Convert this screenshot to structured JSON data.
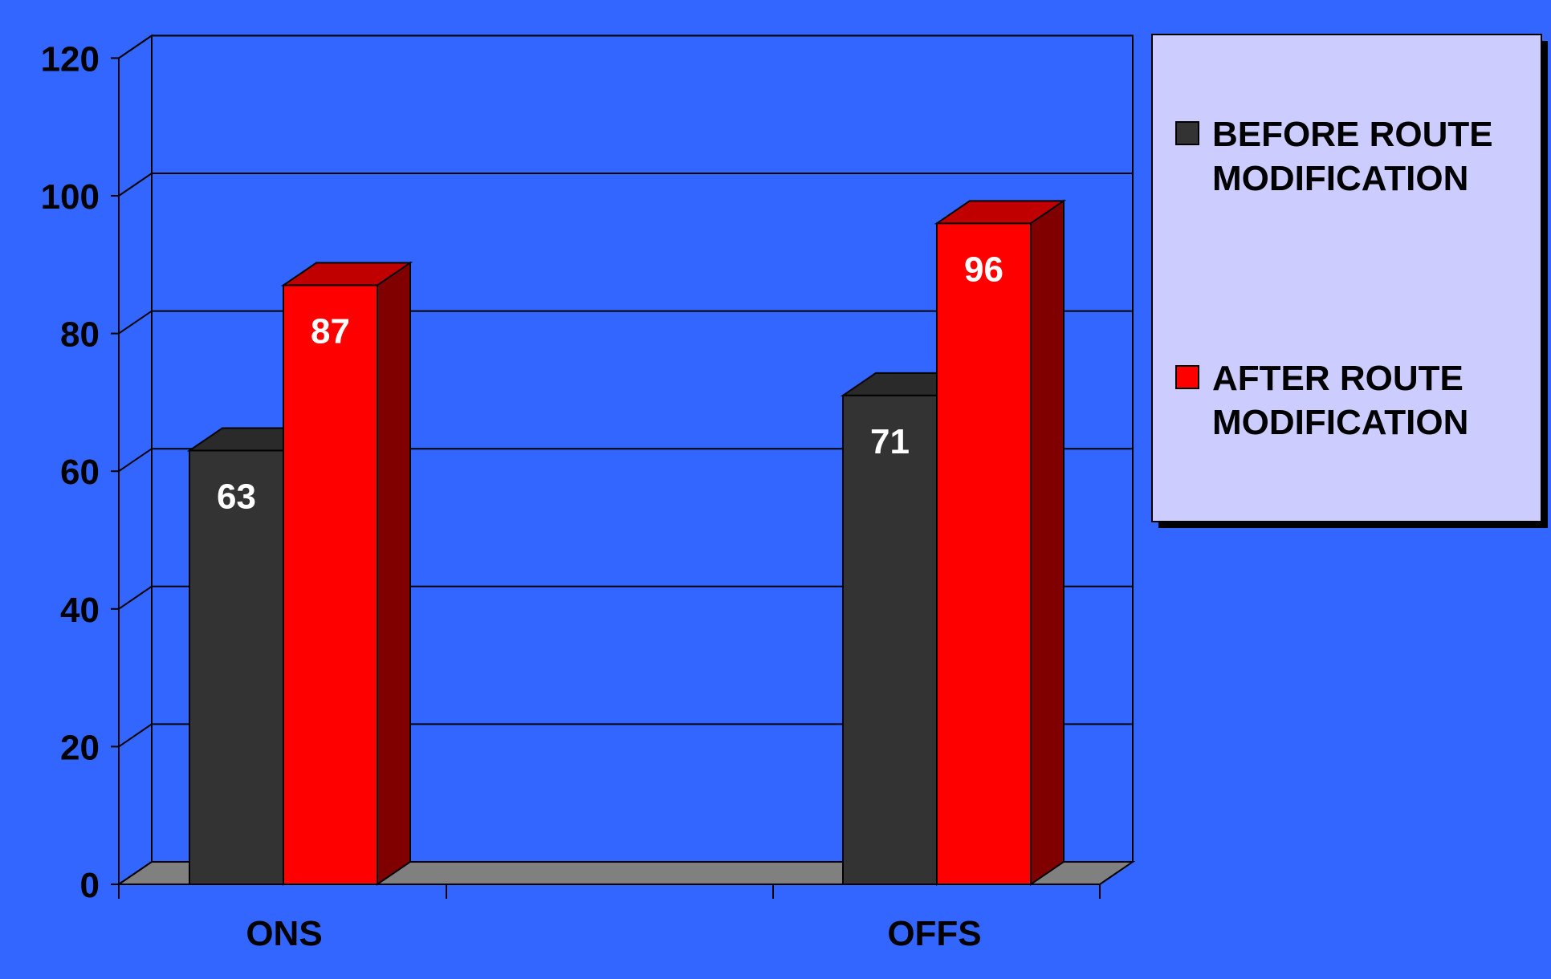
{
  "chart_data": {
    "type": "bar",
    "categories": [
      "ONS",
      "OFFS"
    ],
    "series": [
      {
        "name": "BEFORE ROUTE MODIFICATION",
        "values": [
          63,
          71
        ],
        "color": "#333333",
        "side_color": "#1e1e1e",
        "top_color": "#2a2a2a"
      },
      {
        "name": "AFTER ROUTE MODIFICATION",
        "values": [
          87,
          96
        ],
        "color": "#ff0000",
        "side_color": "#800000",
        "top_color": "#c00000"
      }
    ],
    "data_labels": [
      [
        "63",
        "71"
      ],
      [
        "87",
        "96"
      ]
    ],
    "y_ticks": [
      "0",
      "20",
      "40",
      "60",
      "80",
      "100",
      "120"
    ],
    "ylim": [
      0,
      120
    ],
    "grid": true,
    "legend": {
      "position": "right",
      "items": [
        {
          "lines": [
            "BEFORE ROUTE",
            "MODIFICATION"
          ],
          "color": "#333333"
        },
        {
          "lines": [
            "AFTER ROUTE",
            "MODIFICATION"
          ],
          "color": "#ff0000"
        }
      ]
    },
    "colors": {
      "background": "#3366ff",
      "floor": "#808080",
      "legend_bg": "#ccccff"
    }
  }
}
